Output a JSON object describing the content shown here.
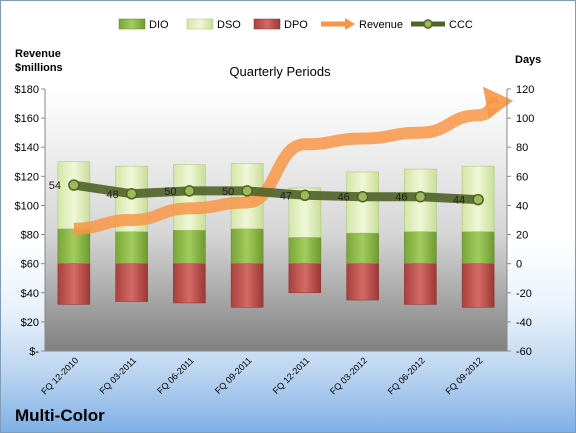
{
  "company": "Multi-Color",
  "chart_data": {
    "type": "bar",
    "subtitle": "Quarterly Periods",
    "left_axis_label": "Revenue\n$millions",
    "right_axis_label": "Days",
    "categories": [
      "FQ 12-2010",
      "FQ 03-2011",
      "FQ 06-2011",
      "FQ 09-2011",
      "FQ 12-2011",
      "FQ 03-2012",
      "FQ 06-2012",
      "FQ 09-2012"
    ],
    "left_axis": {
      "min": 0,
      "max": 180,
      "step": 20,
      "tick_labels": [
        "$-",
        "$20",
        "$40",
        "$60",
        "$80",
        "$100",
        "$120",
        "$140",
        "$160",
        "$180"
      ]
    },
    "right_axis": {
      "min": -60,
      "max": 120,
      "step": 20,
      "tick_labels": [
        "-60",
        "-40",
        "-20",
        "0",
        "20",
        "40",
        "60",
        "80",
        "100",
        "120"
      ]
    },
    "series": [
      {
        "name": "DIO",
        "kind": "stacked-bar",
        "axis": "right",
        "color": "#8db84a",
        "values": [
          24,
          22,
          23,
          24,
          18,
          21,
          22,
          22
        ]
      },
      {
        "name": "DSO",
        "kind": "stacked-bar",
        "axis": "right",
        "color": "#e0eec0",
        "values": [
          46,
          45,
          45,
          45,
          34,
          42,
          43,
          45
        ]
      },
      {
        "name": "DPO",
        "kind": "stacked-bar-negative",
        "axis": "right",
        "color": "#c0504d",
        "values": [
          -28,
          -26,
          -27,
          -30,
          -20,
          -25,
          -28,
          -30
        ]
      },
      {
        "name": "Revenue",
        "kind": "arrow-line",
        "axis": "left",
        "color": "#f79646",
        "values": [
          84,
          90,
          98,
          102,
          142,
          146,
          150,
          162
        ]
      },
      {
        "name": "CCC",
        "kind": "line",
        "axis": "right",
        "color": "#4f6228",
        "values": [
          54,
          48,
          50,
          50,
          47,
          46,
          46,
          44
        ]
      }
    ],
    "ccc_labels": [
      "54",
      "48",
      "50",
      "50",
      "47",
      "46",
      "46",
      "44"
    ],
    "legend_position": "top",
    "grid": false
  }
}
